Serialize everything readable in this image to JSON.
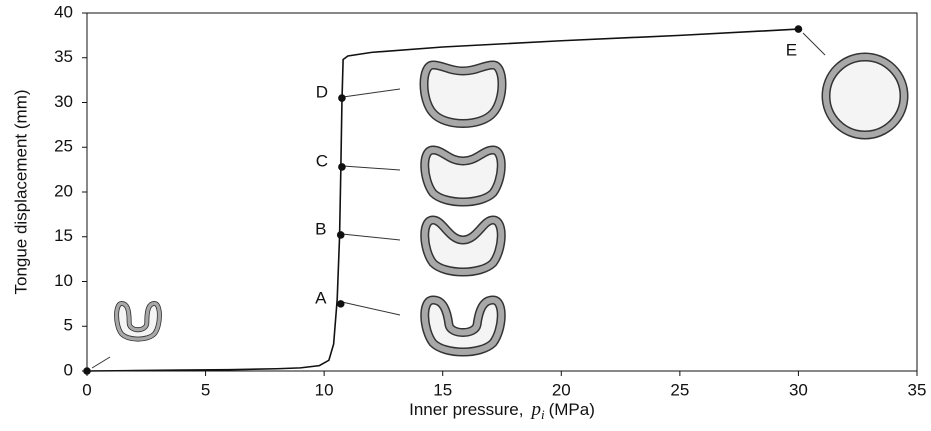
{
  "chart_data": {
    "type": "line",
    "x_label": {
      "prefix": "Inner pressure,",
      "var": "p",
      "sub": "i",
      "unit": "(MPa)"
    },
    "y_label": "Tongue displacement  (mm)",
    "x": [
      0,
      2,
      4,
      6,
      8,
      9,
      9.8,
      10.2,
      10.4,
      10.55,
      10.65,
      10.7,
      10.75,
      10.8,
      11,
      12,
      15,
      20,
      25,
      30
    ],
    "values": [
      0,
      0.05,
      0.1,
      0.15,
      0.25,
      0.35,
      0.6,
      1.2,
      3,
      8,
      15,
      22,
      30,
      34.8,
      35.2,
      35.6,
      36.2,
      36.9,
      37.5,
      38.2
    ],
    "color": "#111111",
    "points": {
      "x": [
        0,
        10.7,
        10.7,
        10.75,
        10.75,
        30
      ],
      "values": [
        0,
        7.5,
        15.2,
        22.8,
        30.5,
        38.2
      ],
      "labels": [
        null,
        "A",
        "B",
        "C",
        "D",
        "E"
      ]
    },
    "xlim": [
      0,
      35
    ],
    "xticks": [
      0,
      5,
      10,
      15,
      20,
      25,
      30,
      35
    ],
    "ylim": [
      0,
      40
    ],
    "yticks": [
      0,
      5,
      10,
      15,
      20,
      25,
      30,
      35,
      40
    ]
  }
}
